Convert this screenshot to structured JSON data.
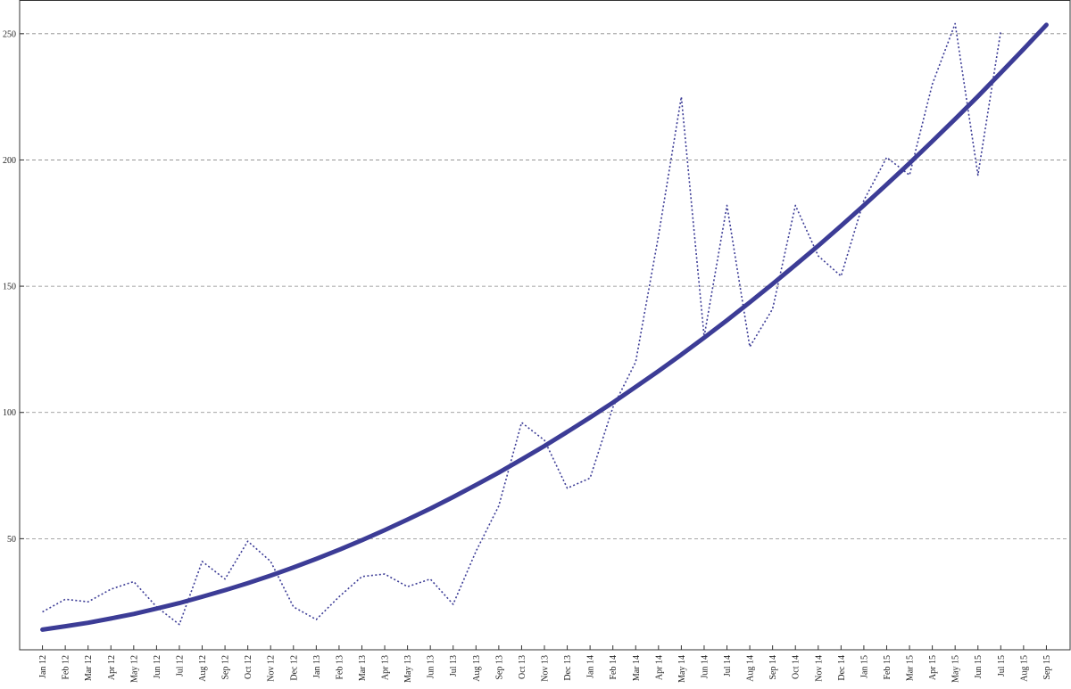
{
  "chart_data": {
    "type": "line",
    "categories": [
      "Jan 12",
      "Feb 12",
      "Mar 12",
      "Apr 12",
      "May 12",
      "Jun 12",
      "Jul 12",
      "Aug 12",
      "Sep 12",
      "Oct 12",
      "Nov 12",
      "Dec 12",
      "Jan 13",
      "Feb 13",
      "Mar 13",
      "Apr 13",
      "May 13",
      "Jun 13",
      "Jul 13",
      "Aug 13",
      "Sep 13",
      "Oct 13",
      "Nov 13",
      "Dec 13",
      "Jan 14",
      "Feb 14",
      "Mar 14",
      "Apr 14",
      "May 14",
      "Jun 14",
      "Jul 14",
      "Aug 14",
      "Sep 14",
      "Oct 14",
      "Nov 14",
      "Dec 14",
      "Jan 15",
      "Feb 15",
      "Mar 15",
      "Apr 15",
      "May 15",
      "Jun 15",
      "Jul 15",
      "Aug 15",
      "Sep 15"
    ],
    "series": [
      {
        "color": "#3c3c96",
        "style": "dotted",
        "values": [
          21,
          26,
          25,
          30,
          33,
          23,
          16,
          41,
          34,
          49,
          41,
          23,
          18,
          27,
          35,
          36,
          31,
          34,
          24,
          45,
          63,
          96,
          89,
          70,
          74,
          102,
          120,
          170,
          225,
          130,
          182,
          126,
          141,
          182,
          162,
          154,
          184,
          201,
          194,
          230,
          254,
          194,
          251,
          null,
          null
        ]
      },
      {
        "color": "#3c3c96",
        "style": "solid",
        "values": [
          14,
          15.3,
          16.7,
          18.4,
          20.2,
          22.3,
          24.5,
          27,
          29.6,
          32.4,
          35.4,
          38.6,
          42,
          45.6,
          49.4,
          53.4,
          57.6,
          61.9,
          66.5,
          71.3,
          76.2,
          81.4,
          86.7,
          92.3,
          98,
          103.9,
          110.1,
          116.4,
          122.9,
          129.6,
          136.5,
          143.6,
          150.9,
          158.4,
          166,
          173.9,
          182,
          190.3,
          198.7,
          207.4,
          216.2,
          225.2,
          234.5,
          243.9,
          253.5
        ]
      }
    ],
    "ylim": [
      6,
      263
    ],
    "yticks": [
      50,
      100,
      150,
      200,
      250
    ],
    "grid": true
  }
}
